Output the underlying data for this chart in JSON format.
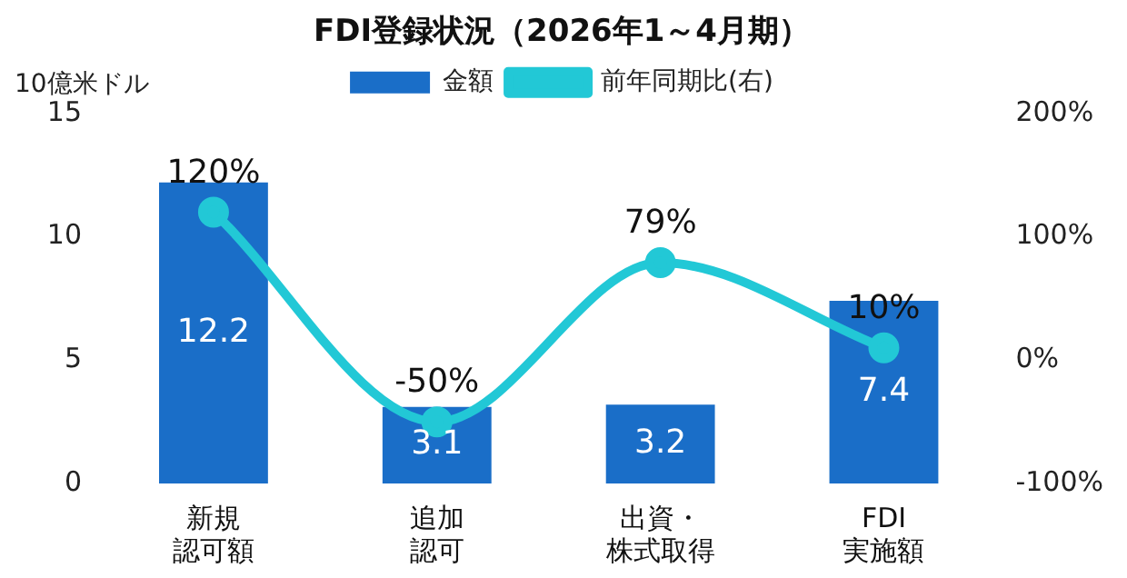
{
  "chart_data": {
    "type": "bar",
    "title": "FDI登録状況（2026年1～4月期）",
    "ylabel": "10億米ドル",
    "categories": [
      "新規認可額",
      "追加認可",
      "出資・株式取得",
      "FDI実施額"
    ],
    "series": [
      {
        "name": "金額",
        "color": "#1a6ec8",
        "values": [
          12.2,
          3.1,
          3.2,
          7.4
        ]
      },
      {
        "name": "前年同期比(右)",
        "type": "line",
        "axis": "y2",
        "color": "#22c8d6",
        "marker": "circle",
        "values": [
          120,
          -50,
          79,
          10
        ],
        "value_labels": [
          "120%",
          "-50%",
          "79%",
          "10%"
        ]
      }
    ],
    "data_labels": true,
    "ylim": [
      0,
      15
    ],
    "yticks": [
      0,
      5,
      10,
      15
    ],
    "y2lim": [
      -100,
      200
    ],
    "y2ticks": [
      {
        "value": -100,
        "label": "-100%"
      },
      {
        "value": 0,
        "label": "0%"
      },
      {
        "value": 100,
        "label": "100%"
      },
      {
        "value": 200,
        "label": "200%"
      }
    ],
    "grid": false,
    "legend": "top"
  }
}
